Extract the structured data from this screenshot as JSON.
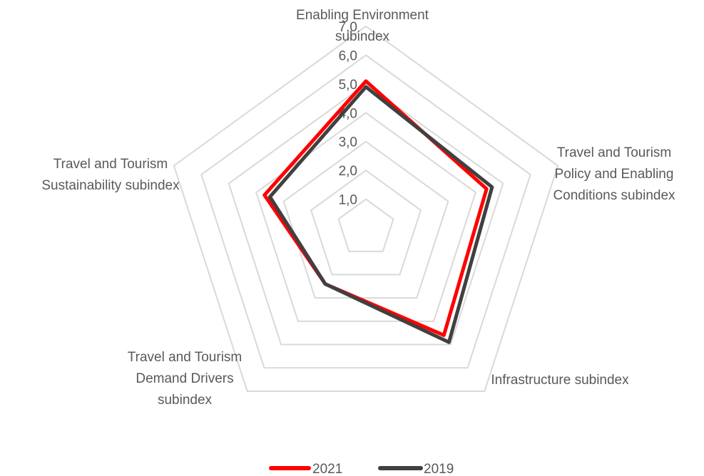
{
  "chart_data": {
    "type": "radar",
    "title": "",
    "axes": [
      "Enabling Environment subindex",
      "Travel and Tourism Policy and Enabling Conditions subindex",
      "Infrastructure subindex",
      "Travel and Tourism Demand Drivers subindex",
      "Travel and Tourism Sustainability subindex"
    ],
    "axis_label_lines": [
      [
        "Enabling Environment",
        "subindex"
      ],
      [
        "Travel and Tourism",
        "Policy and Enabling",
        "Conditions subindex"
      ],
      [
        "Infrastructure subindex"
      ],
      [
        "Travel and Tourism",
        "Demand Drivers",
        "subindex"
      ],
      [
        "Travel and Tourism",
        "Sustainability subindex"
      ]
    ],
    "rlim": [
      0,
      7
    ],
    "ticks": [
      "1,0",
      "2,0",
      "3,0",
      "4,0",
      "5,0",
      "6,0",
      "7,0"
    ],
    "tick_values": [
      1,
      2,
      3,
      4,
      5,
      6,
      7
    ],
    "grid": true,
    "legend_position": "bottom",
    "series": [
      {
        "name": "2021",
        "color": "#ff0000",
        "values": [
          5.1,
          4.4,
          4.6,
          2.4,
          3.7
        ]
      },
      {
        "name": "2019",
        "color": "#404040",
        "values": [
          4.9,
          4.6,
          4.9,
          2.4,
          3.5
        ]
      }
    ]
  }
}
